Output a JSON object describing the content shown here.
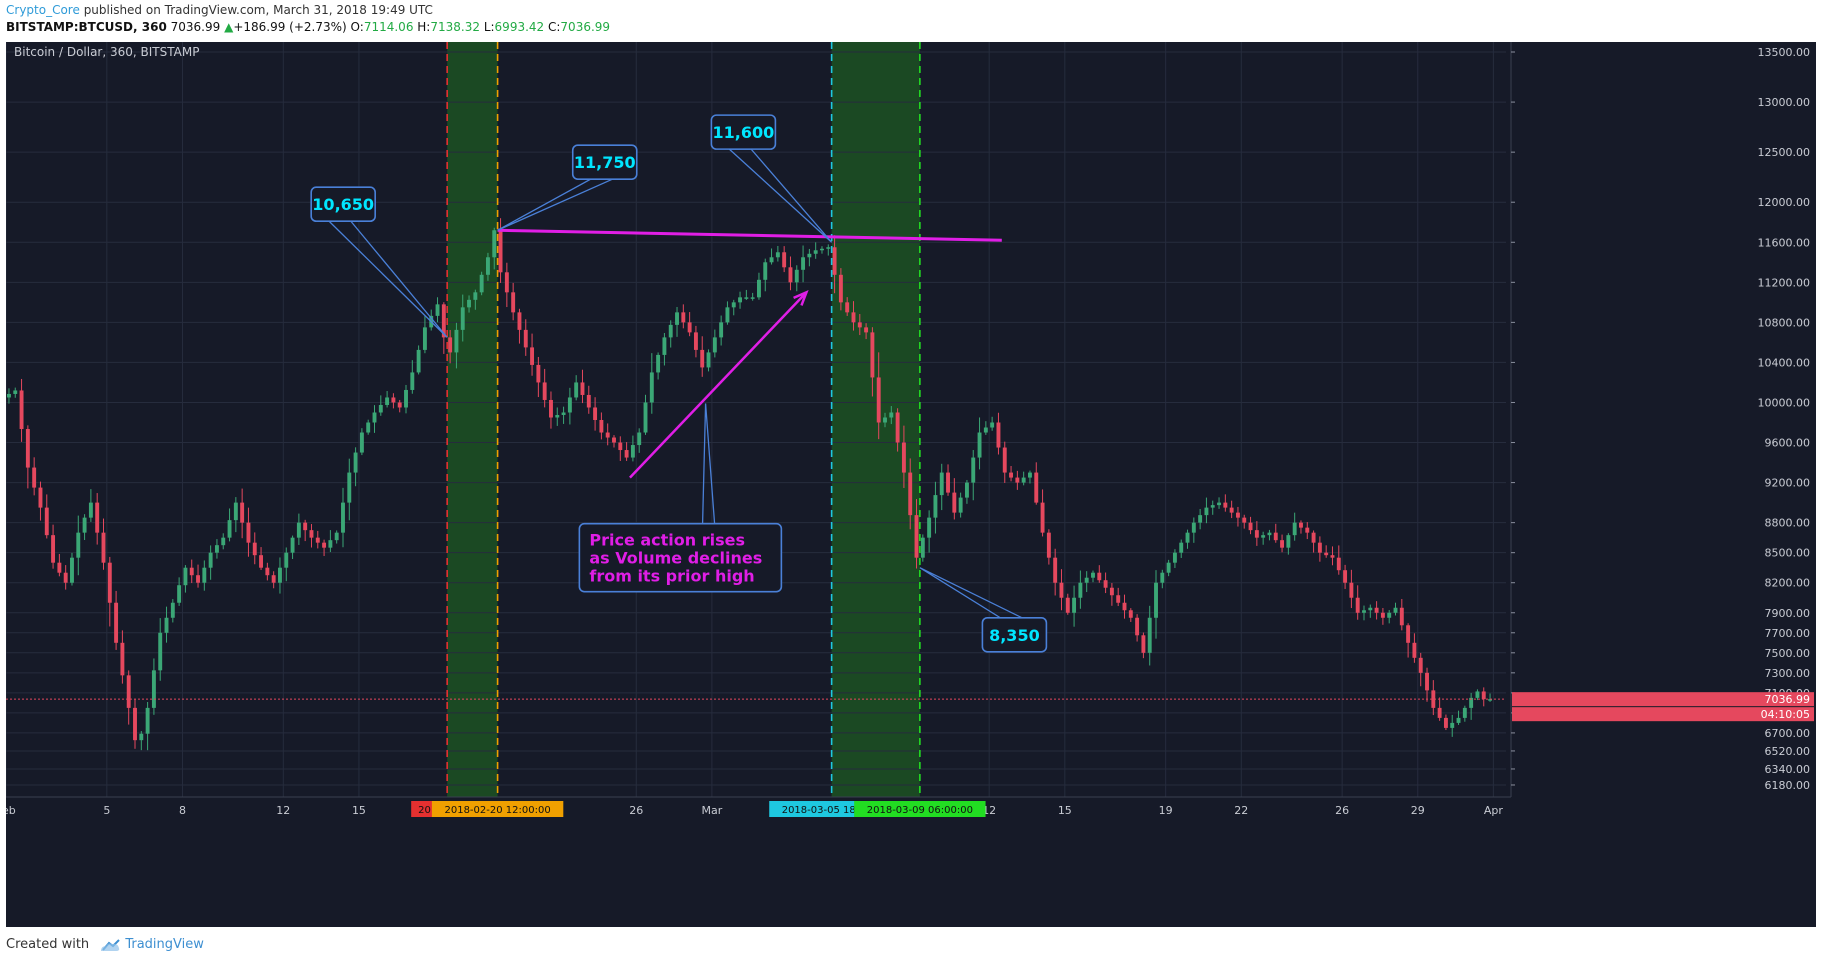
{
  "header": {
    "author": "Crypto_Core",
    "published": "published on TradingView.com, March 31, 2018 19:49 UTC"
  },
  "quote": {
    "symbol": "BITSTAMP:BTCUSD, 360",
    "last": "7036.99",
    "change": "+186.99 (+2.73%)",
    "open_label": "O:",
    "open": "7114.06",
    "high_label": "H:",
    "high": "7138.32",
    "low_label": "L:",
    "low": "6993.42",
    "close_label": "C:",
    "close": "7036.99"
  },
  "footer": {
    "created_with": "Created with",
    "brand": "TradingView"
  },
  "colors": {
    "background": "#161a28",
    "grid": "#262c3d",
    "up_candle": "#3ba776",
    "down_candle": "#e5485e",
    "annotation_pink": "#e01ee6",
    "callout_text": "#00e6ff",
    "callout_border": "#4a80d8",
    "vline_red": "#e53030",
    "vline_orange": "#f0a000",
    "vline_cyan": "#1ec8e0",
    "vline_green": "#22dd22",
    "highlight_zone": "#1e5a22"
  },
  "chart_data": {
    "type": "candlestick",
    "title": "Bitcoin / Dollar, 360, BITSTAMP",
    "ylim": [
      6060,
      13600
    ],
    "y_ticks": [
      6180,
      6340,
      6520,
      6700,
      6900,
      7100,
      7300,
      7500,
      7700,
      7900,
      8200,
      8500,
      8800,
      9200,
      9600,
      10000,
      10400,
      10800,
      11200,
      11600,
      12000,
      12500,
      13000,
      13500
    ],
    "y_tick_labels": [
      "6180.00",
      "6340.00",
      "6520.00",
      "6700.00",
      "6900.00",
      "7100.00",
      "7300.00",
      "7500.00",
      "7700.00",
      "7900.00",
      "8200.00",
      "8500.00",
      "8800.00",
      "9200.00",
      "9600.00",
      "10000.00",
      "10400.00",
      "10800.00",
      "11200.00",
      "11600.00",
      "12000.00",
      "12500.00",
      "13000.00",
      "13500.00"
    ],
    "x_start": "2018-02-01 00:00",
    "x_end": "2018-04-01 12:00",
    "candle_interval_hours": 6,
    "x_ticks": [
      {
        "date": "2018-02-01",
        "label": "Feb"
      },
      {
        "date": "2018-02-05",
        "label": "5"
      },
      {
        "date": "2018-02-08",
        "label": "8"
      },
      {
        "date": "2018-02-12",
        "label": "12"
      },
      {
        "date": "2018-02-15",
        "label": "15"
      },
      {
        "date": "2018-02-26",
        "label": "26"
      },
      {
        "date": "2018-03-01",
        "label": "Mar"
      },
      {
        "date": "2018-03-12",
        "label": "12"
      },
      {
        "date": "2018-03-15",
        "label": "15"
      },
      {
        "date": "2018-03-19",
        "label": "19"
      },
      {
        "date": "2018-03-22",
        "label": "22"
      },
      {
        "date": "2018-03-26",
        "label": "26"
      },
      {
        "date": "2018-03-29",
        "label": "29"
      },
      {
        "date": "2018-04-01",
        "label": "Apr"
      }
    ],
    "price_path": [
      {
        "date": "2018-02-01 00:00",
        "price": 10050
      },
      {
        "date": "2018-02-01 12:00",
        "price": 10120
      },
      {
        "date": "2018-02-02 00:00",
        "price": 9350
      },
      {
        "date": "2018-02-02 12:00",
        "price": 8950
      },
      {
        "date": "2018-02-03 00:00",
        "price": 8400
      },
      {
        "date": "2018-02-03 12:00",
        "price": 8200
      },
      {
        "date": "2018-02-04 00:00",
        "price": 8700
      },
      {
        "date": "2018-02-04 12:00",
        "price": 9000
      },
      {
        "date": "2018-02-05 00:00",
        "price": 8400
      },
      {
        "date": "2018-02-05 12:00",
        "price": 7600
      },
      {
        "date": "2018-02-06 00:00",
        "price": 6950
      },
      {
        "date": "2018-02-06 08:00",
        "price": 6520
      },
      {
        "date": "2018-02-06 18:00",
        "price": 6950
      },
      {
        "date": "2018-02-07 06:00",
        "price": 7700
      },
      {
        "date": "2018-02-07 18:00",
        "price": 8000
      },
      {
        "date": "2018-02-08 06:00",
        "price": 8350
      },
      {
        "date": "2018-02-08 18:00",
        "price": 8200
      },
      {
        "date": "2018-02-09 06:00",
        "price": 8500
      },
      {
        "date": "2018-02-09 18:00",
        "price": 8650
      },
      {
        "date": "2018-02-10 06:00",
        "price": 9000
      },
      {
        "date": "2018-02-10 18:00",
        "price": 8600
      },
      {
        "date": "2018-02-11 06:00",
        "price": 8350
      },
      {
        "date": "2018-02-11 18:00",
        "price": 8200
      },
      {
        "date": "2018-02-12 06:00",
        "price": 8500
      },
      {
        "date": "2018-02-12 18:00",
        "price": 8800
      },
      {
        "date": "2018-02-13 06:00",
        "price": 8650
      },
      {
        "date": "2018-02-13 18:00",
        "price": 8550
      },
      {
        "date": "2018-02-14 06:00",
        "price": 8700
      },
      {
        "date": "2018-02-14 18:00",
        "price": 9300
      },
      {
        "date": "2018-02-15 06:00",
        "price": 9700
      },
      {
        "date": "2018-02-15 18:00",
        "price": 9900
      },
      {
        "date": "2018-02-16 06:00",
        "price": 10050
      },
      {
        "date": "2018-02-16 18:00",
        "price": 9950
      },
      {
        "date": "2018-02-17 06:00",
        "price": 10300
      },
      {
        "date": "2018-02-17 18:00",
        "price": 10750
      },
      {
        "date": "2018-02-18 06:00",
        "price": 10980
      },
      {
        "date": "2018-02-18 12:00",
        "price": 10650
      },
      {
        "date": "2018-02-18 18:00",
        "price": 10500
      },
      {
        "date": "2018-02-19 06:00",
        "price": 10950
      },
      {
        "date": "2018-02-19 18:00",
        "price": 11100
      },
      {
        "date": "2018-02-20 06:00",
        "price": 11450
      },
      {
        "date": "2018-02-20 12:00",
        "price": 11720
      },
      {
        "date": "2018-02-20 18:00",
        "price": 11300
      },
      {
        "date": "2018-02-21 06:00",
        "price": 10900
      },
      {
        "date": "2018-02-21 18:00",
        "price": 10550
      },
      {
        "date": "2018-02-22 06:00",
        "price": 10200
      },
      {
        "date": "2018-02-22 18:00",
        "price": 9850
      },
      {
        "date": "2018-02-23 06:00",
        "price": 9900
      },
      {
        "date": "2018-02-23 18:00",
        "price": 10200
      },
      {
        "date": "2018-02-24 06:00",
        "price": 9950
      },
      {
        "date": "2018-02-24 18:00",
        "price": 9700
      },
      {
        "date": "2018-02-25 06:00",
        "price": 9600
      },
      {
        "date": "2018-02-25 18:00",
        "price": 9450
      },
      {
        "date": "2018-02-26 06:00",
        "price": 9700
      },
      {
        "date": "2018-02-26 18:00",
        "price": 10300
      },
      {
        "date": "2018-02-27 06:00",
        "price": 10650
      },
      {
        "date": "2018-02-27 18:00",
        "price": 10900
      },
      {
        "date": "2018-02-28 06:00",
        "price": 10700
      },
      {
        "date": "2018-02-28 18:00",
        "price": 10350
      },
      {
        "date": "2018-03-01 06:00",
        "price": 10650
      },
      {
        "date": "2018-03-01 18:00",
        "price": 10950
      },
      {
        "date": "2018-03-02 06:00",
        "price": 11050
      },
      {
        "date": "2018-03-02 18:00",
        "price": 11050
      },
      {
        "date": "2018-03-03 06:00",
        "price": 11400
      },
      {
        "date": "2018-03-03 18:00",
        "price": 11500
      },
      {
        "date": "2018-03-04 06:00",
        "price": 11200
      },
      {
        "date": "2018-03-04 18:00",
        "price": 11450
      },
      {
        "date": "2018-03-05 06:00",
        "price": 11520
      },
      {
        "date": "2018-03-05 18:00",
        "price": 11550
      },
      {
        "date": "2018-03-06 06:00",
        "price": 11000
      },
      {
        "date": "2018-03-06 18:00",
        "price": 10800
      },
      {
        "date": "2018-03-07 06:00",
        "price": 10700
      },
      {
        "date": "2018-03-07 18:00",
        "price": 9800
      },
      {
        "date": "2018-03-08 06:00",
        "price": 9900
      },
      {
        "date": "2018-03-08 18:00",
        "price": 9300
      },
      {
        "date": "2018-03-09 06:00",
        "price": 8450
      },
      {
        "date": "2018-03-09 18:00",
        "price": 8850
      },
      {
        "date": "2018-03-10 06:00",
        "price": 9300
      },
      {
        "date": "2018-03-10 18:00",
        "price": 8900
      },
      {
        "date": "2018-03-11 06:00",
        "price": 9200
      },
      {
        "date": "2018-03-11 18:00",
        "price": 9700
      },
      {
        "date": "2018-03-12 06:00",
        "price": 9800
      },
      {
        "date": "2018-03-12 18:00",
        "price": 9300
      },
      {
        "date": "2018-03-13 06:00",
        "price": 9200
      },
      {
        "date": "2018-03-13 18:00",
        "price": 9300
      },
      {
        "date": "2018-03-14 06:00",
        "price": 8700
      },
      {
        "date": "2018-03-14 18:00",
        "price": 8200
      },
      {
        "date": "2018-03-15 06:00",
        "price": 7900
      },
      {
        "date": "2018-03-15 18:00",
        "price": 8200
      },
      {
        "date": "2018-03-16 06:00",
        "price": 8300
      },
      {
        "date": "2018-03-16 18:00",
        "price": 8150
      },
      {
        "date": "2018-03-17 06:00",
        "price": 8000
      },
      {
        "date": "2018-03-17 18:00",
        "price": 7850
      },
      {
        "date": "2018-03-18 06:00",
        "price": 7500
      },
      {
        "date": "2018-03-18 18:00",
        "price": 8200
      },
      {
        "date": "2018-03-19 06:00",
        "price": 8400
      },
      {
        "date": "2018-03-19 18:00",
        "price": 8600
      },
      {
        "date": "2018-03-20 06:00",
        "price": 8800
      },
      {
        "date": "2018-03-20 18:00",
        "price": 8950
      },
      {
        "date": "2018-03-21 06:00",
        "price": 9000
      },
      {
        "date": "2018-03-21 18:00",
        "price": 8900
      },
      {
        "date": "2018-03-22 06:00",
        "price": 8800
      },
      {
        "date": "2018-03-22 18:00",
        "price": 8650
      },
      {
        "date": "2018-03-23 06:00",
        "price": 8700
      },
      {
        "date": "2018-03-23 18:00",
        "price": 8550
      },
      {
        "date": "2018-03-24 06:00",
        "price": 8800
      },
      {
        "date": "2018-03-24 18:00",
        "price": 8700
      },
      {
        "date": "2018-03-25 06:00",
        "price": 8500
      },
      {
        "date": "2018-03-25 18:00",
        "price": 8450
      },
      {
        "date": "2018-03-26 06:00",
        "price": 8200
      },
      {
        "date": "2018-03-26 18:00",
        "price": 7900
      },
      {
        "date": "2018-03-27 06:00",
        "price": 7950
      },
      {
        "date": "2018-03-27 18:00",
        "price": 7850
      },
      {
        "date": "2018-03-28 06:00",
        "price": 7950
      },
      {
        "date": "2018-03-28 18:00",
        "price": 7600
      },
      {
        "date": "2018-03-29 06:00",
        "price": 7300
      },
      {
        "date": "2018-03-29 18:00",
        "price": 6950
      },
      {
        "date": "2018-03-30 06:00",
        "price": 6750
      },
      {
        "date": "2018-03-30 18:00",
        "price": 6850
      },
      {
        "date": "2018-03-31 06:00",
        "price": 7050
      },
      {
        "date": "2018-03-31 12:00",
        "price": 7114.06
      },
      {
        "date": "2018-03-31 18:00",
        "price": 7036.99
      }
    ],
    "vertical_markers": [
      {
        "date": "2018-02-18 12:00",
        "label": "2018-02-18",
        "color": "#e53030"
      },
      {
        "date": "2018-02-20 12:00",
        "label": "2018-02-20 12:00:00",
        "color": "#f0a000"
      },
      {
        "date": "2018-03-05 18:00",
        "label": "2018-03-05 18:00:0",
        "color": "#1ec8e0"
      },
      {
        "date": "2018-03-09 06:00",
        "label": "2018-03-09 06:00:00",
        "color": "#22dd22"
      }
    ],
    "highlight_zones": [
      {
        "from": "2018-02-18 12:00",
        "to": "2018-02-20 12:00"
      },
      {
        "from": "2018-03-05 18:00",
        "to": "2018-03-09 06:00"
      }
    ],
    "last_price": {
      "value": 7036.99,
      "label": "7036.99",
      "countdown": "04:10:05"
    },
    "trendline": {
      "from": {
        "date": "2018-02-20 12:00",
        "price": 11720
      },
      "to": {
        "date": "2018-03-12 12:00",
        "price": 11620
      }
    },
    "arrow": {
      "from": {
        "date": "2018-02-25 18:00",
        "price": 9250
      },
      "to": {
        "date": "2018-03-04 18:00",
        "price": 11100
      }
    },
    "callouts": [
      {
        "label": "10,650",
        "target": {
          "date": "2018-02-18 12:00",
          "price": 10650
        },
        "box": {
          "date": "2018-02-14 09:00",
          "price": 11980
        }
      },
      {
        "label": "11,750",
        "target": {
          "date": "2018-02-20 12:00",
          "price": 11720
        },
        "box": {
          "date": "2018-02-24 18:00",
          "price": 12400
        }
      },
      {
        "label": "11,600",
        "target": {
          "date": "2018-03-05 18:00",
          "price": 11600
        },
        "box": {
          "date": "2018-03-02 06:00",
          "price": 12700
        }
      },
      {
        "label": "8,350",
        "target": {
          "date": "2018-03-09 06:00",
          "price": 8350
        },
        "box": {
          "date": "2018-03-13 00:00",
          "price": 7680
        }
      }
    ],
    "note": {
      "lines": [
        "Price action rises",
        "as Volume declines",
        "from its prior high"
      ],
      "target": {
        "date": "2018-02-28 18:00",
        "price": 9990
      },
      "box": {
        "date": "2018-02-27 18:00",
        "price": 8450
      }
    }
  }
}
